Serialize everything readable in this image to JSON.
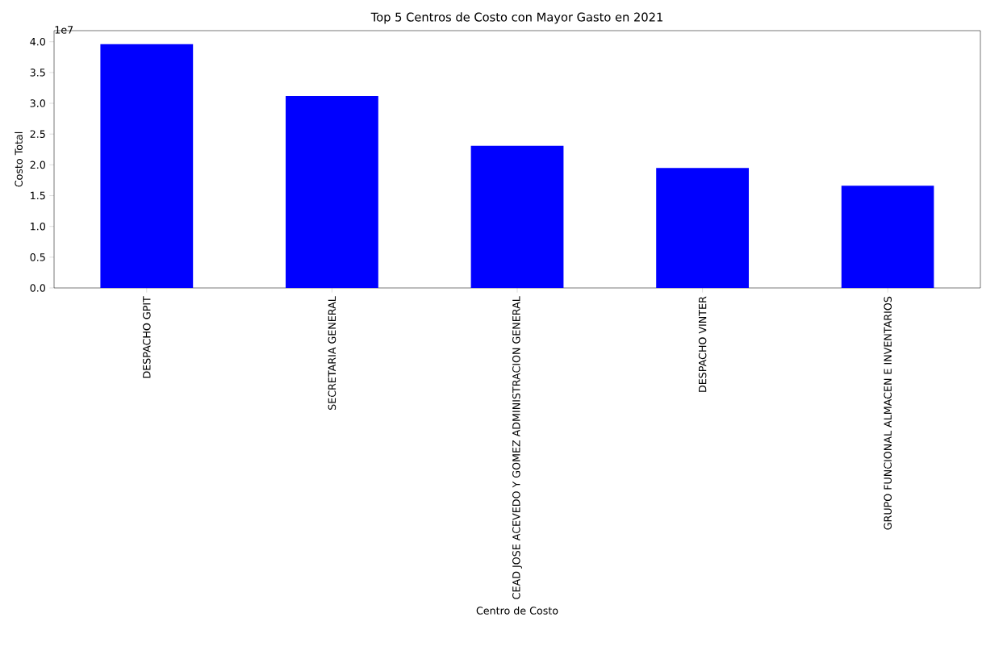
{
  "chart_data": {
    "type": "bar",
    "title": "Top 5 Centros de Costo con Mayor Gasto en 2021",
    "xlabel": "Centro de Costo",
    "ylabel": "Costo Total",
    "categories": [
      "DESPACHO GPIT",
      "SECRETARIA GENERAL",
      "CEAD JOSE ACEVEDO Y GOMEZ ADMINISTRACION GENERAL",
      "DESPACHO VINTER",
      "GRUPO FUNCIONAL ALMACEN E INVENTARIOS"
    ],
    "values": [
      3.96,
      3.12,
      2.31,
      1.95,
      1.66
    ],
    "color": "#0000ff",
    "ylim": [
      0,
      4.18
    ],
    "yticks": [
      {
        "value": 0,
        "label": "0.0"
      },
      {
        "value": 0.5,
        "label": "0.5"
      },
      {
        "value": 1,
        "label": "1.0"
      },
      {
        "value": 1.5,
        "label": "1.5"
      },
      {
        "value": 2,
        "label": "2.0"
      },
      {
        "value": 2.5,
        "label": "2.5"
      },
      {
        "value": 3,
        "label": "3.0"
      },
      {
        "value": 3.5,
        "label": "3.5"
      },
      {
        "value": 4,
        "label": "4.0"
      }
    ],
    "annotations": [
      "1e7"
    ],
    "grid": false
  }
}
